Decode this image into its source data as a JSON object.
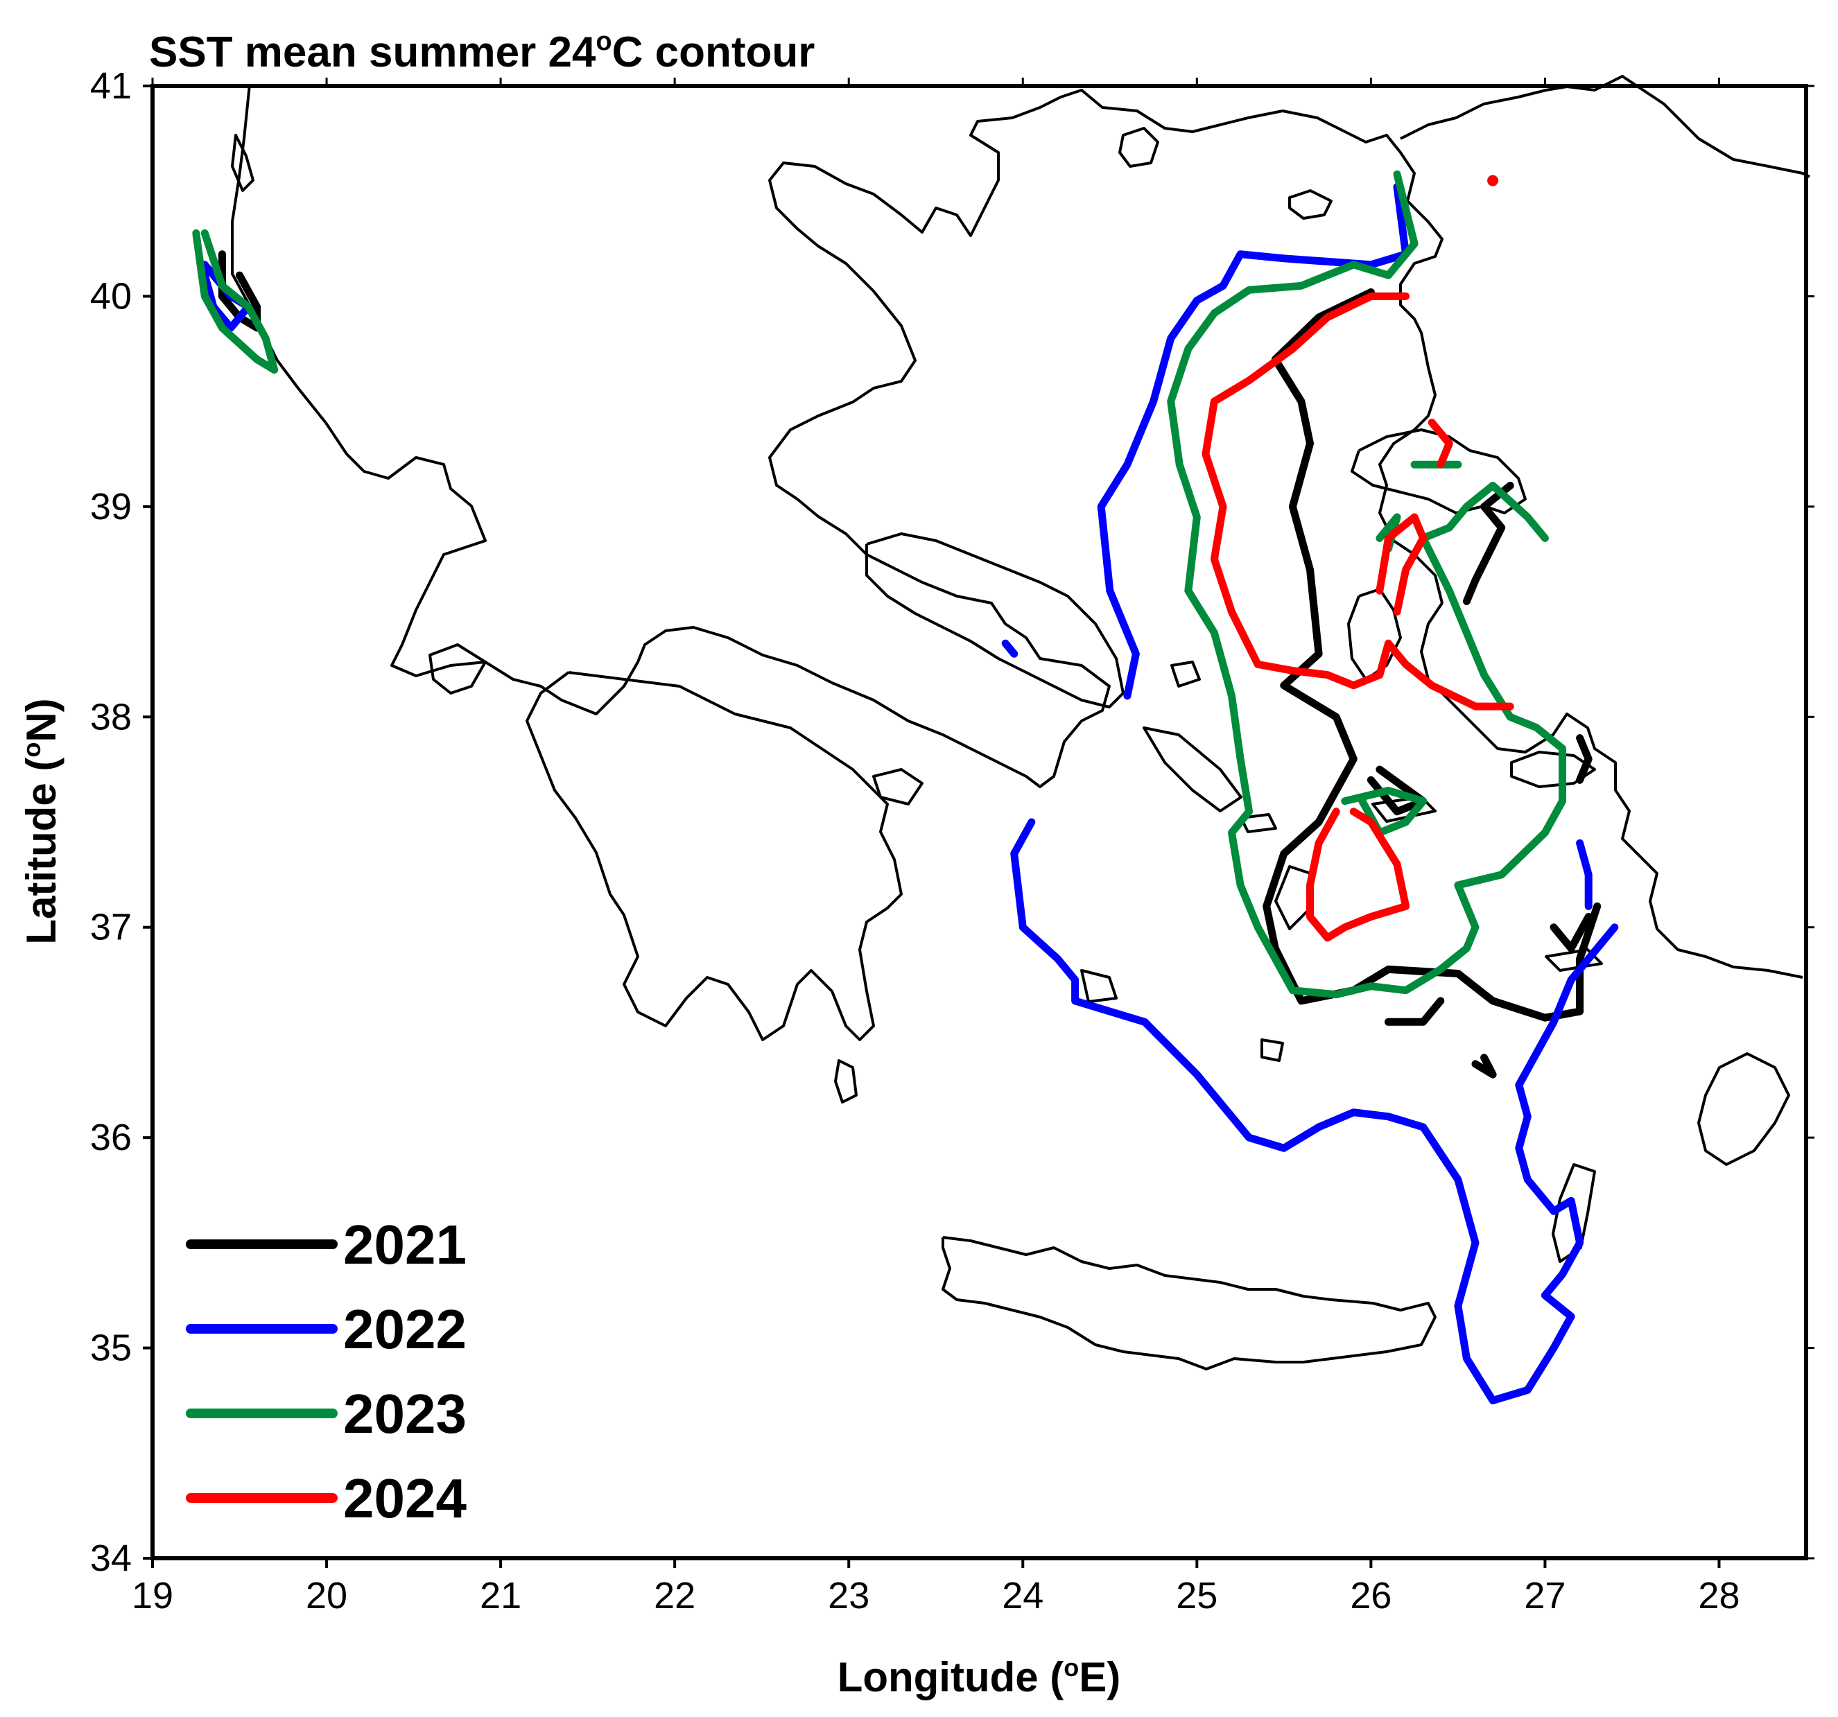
{
  "title": {
    "main": "SST mean summer  24",
    "sup": "o",
    "tail": "C contour"
  },
  "axes": {
    "xlabel": {
      "pre": "Longitude (",
      "sup": "o",
      "post": "E)"
    },
    "ylabel": {
      "pre": "Latitude (",
      "sup": "o",
      "post": "N)"
    },
    "xlim": [
      19,
      28.5
    ],
    "ylim": [
      34,
      41
    ],
    "xticks": [
      "19",
      "20",
      "21",
      "22",
      "23",
      "24",
      "25",
      "26",
      "27",
      "28"
    ],
    "yticks": [
      "34",
      "35",
      "36",
      "37",
      "38",
      "39",
      "40",
      "41"
    ]
  },
  "legend": {
    "placement": "bottom-left",
    "items": [
      {
        "label": "2021",
        "color": "#000000"
      },
      {
        "label": "2022",
        "color": "#0000ff"
      },
      {
        "label": "2023",
        "color": "#008c3c"
      },
      {
        "label": "2024",
        "color": "#ff0000"
      }
    ]
  },
  "chart_data": {
    "type": "map",
    "variable": "SST mean summer 24°C contour",
    "series": [
      {
        "name": "2021",
        "color": "#000000",
        "lines": [
          [
            [
              19.4,
              40.2
            ],
            [
              19.4,
              40.0
            ],
            [
              19.5,
              39.9
            ],
            [
              19.6,
              39.85
            ],
            [
              19.6,
              39.95
            ],
            [
              19.5,
              40.1
            ]
          ],
          [
            [
              26.0,
              40.02
            ],
            [
              25.7,
              39.9
            ],
            [
              25.45,
              39.7
            ],
            [
              25.6,
              39.5
            ],
            [
              25.65,
              39.3
            ],
            [
              25.55,
              39.0
            ],
            [
              25.65,
              38.7
            ],
            [
              25.7,
              38.3
            ],
            [
              25.5,
              38.15
            ],
            [
              25.8,
              38.0
            ],
            [
              25.9,
              37.8
            ],
            [
              25.7,
              37.5
            ],
            [
              25.5,
              37.35
            ],
            [
              25.4,
              37.1
            ],
            [
              25.45,
              36.9
            ],
            [
              25.6,
              36.65
            ],
            [
              25.9,
              36.7
            ],
            [
              26.1,
              36.8
            ],
            [
              26.5,
              36.78
            ],
            [
              26.7,
              36.65
            ],
            [
              27.0,
              36.57
            ],
            [
              27.2,
              36.6
            ],
            [
              27.2,
              36.85
            ],
            [
              27.3,
              37.1
            ]
          ],
          [
            [
              26.55,
              38.55
            ],
            [
              26.6,
              38.65
            ],
            [
              26.75,
              38.9
            ],
            [
              26.65,
              39.0
            ],
            [
              26.8,
              39.1
            ]
          ],
          [
            [
              26.05,
              37.75
            ],
            [
              26.3,
              37.6
            ],
            [
              26.15,
              37.55
            ],
            [
              26.0,
              37.7
            ]
          ],
          [
            [
              26.1,
              36.55
            ],
            [
              26.3,
              36.55
            ],
            [
              26.4,
              36.65
            ]
          ],
          [
            [
              26.6,
              36.35
            ],
            [
              26.7,
              36.3
            ],
            [
              26.65,
              36.38
            ]
          ],
          [
            [
              27.2,
              37.9
            ],
            [
              27.25,
              37.8
            ],
            [
              27.2,
              37.7
            ]
          ],
          [
            [
              27.05,
              37.0
            ],
            [
              27.15,
              36.9
            ],
            [
              27.25,
              37.05
            ]
          ]
        ]
      },
      {
        "name": "2022",
        "color": "#0000ff",
        "lines": [
          [
            [
              19.3,
              40.15
            ],
            [
              19.45,
              40.0
            ],
            [
              19.55,
              39.95
            ],
            [
              19.45,
              39.85
            ],
            [
              19.35,
              39.95
            ],
            [
              19.3,
              40.1
            ]
          ],
          [
            [
              26.15,
              40.52
            ],
            [
              26.2,
              40.2
            ],
            [
              26.0,
              40.15
            ],
            [
              25.5,
              40.18
            ],
            [
              25.25,
              40.2
            ],
            [
              25.15,
              40.05
            ],
            [
              25.0,
              39.98
            ],
            [
              24.85,
              39.8
            ],
            [
              24.75,
              39.5
            ],
            [
              24.6,
              39.2
            ],
            [
              24.45,
              39.0
            ],
            [
              24.5,
              38.6
            ],
            [
              24.65,
              38.3
            ],
            [
              24.6,
              38.1
            ]
          ],
          [
            [
              23.9,
              38.35
            ],
            [
              23.95,
              38.3
            ]
          ],
          [
            [
              24.05,
              37.5
            ],
            [
              23.95,
              37.35
            ],
            [
              24.0,
              37.0
            ],
            [
              24.2,
              36.85
            ],
            [
              24.3,
              36.75
            ],
            [
              24.3,
              36.65
            ],
            [
              24.5,
              36.6
            ],
            [
              24.7,
              36.55
            ],
            [
              25.0,
              36.3
            ],
            [
              25.3,
              36.0
            ],
            [
              25.5,
              35.95
            ],
            [
              25.7,
              36.05
            ],
            [
              25.9,
              36.12
            ],
            [
              26.1,
              36.1
            ],
            [
              26.3,
              36.05
            ],
            [
              26.5,
              35.8
            ],
            [
              26.6,
              35.5
            ],
            [
              26.5,
              35.2
            ],
            [
              26.55,
              34.95
            ],
            [
              26.7,
              34.75
            ],
            [
              26.9,
              34.8
            ],
            [
              27.05,
              35.0
            ],
            [
              27.15,
              35.15
            ],
            [
              27.0,
              35.25
            ],
            [
              27.1,
              35.35
            ],
            [
              27.2,
              35.5
            ],
            [
              27.15,
              35.7
            ],
            [
              27.05,
              35.65
            ],
            [
              26.9,
              35.8
            ],
            [
              26.85,
              35.95
            ],
            [
              26.9,
              36.1
            ],
            [
              26.85,
              36.25
            ],
            [
              26.95,
              36.4
            ],
            [
              27.05,
              36.55
            ],
            [
              27.15,
              36.75
            ],
            [
              27.25,
              36.85
            ],
            [
              27.4,
              37.0
            ]
          ],
          [
            [
              27.2,
              37.4
            ],
            [
              27.25,
              37.25
            ],
            [
              27.25,
              37.1
            ]
          ]
        ]
      },
      {
        "name": "2023",
        "color": "#008c3c",
        "lines": [
          [
            [
              19.25,
              40.3
            ],
            [
              19.3,
              40.0
            ],
            [
              19.4,
              39.85
            ],
            [
              19.6,
              39.7
            ],
            [
              19.7,
              39.65
            ],
            [
              19.65,
              39.8
            ],
            [
              19.55,
              39.95
            ],
            [
              19.4,
              40.05
            ],
            [
              19.3,
              40.3
            ]
          ],
          [
            [
              26.15,
              40.58
            ],
            [
              26.25,
              40.25
            ],
            [
              26.1,
              40.1
            ],
            [
              25.9,
              40.15
            ],
            [
              25.6,
              40.05
            ],
            [
              25.3,
              40.03
            ],
            [
              25.1,
              39.92
            ],
            [
              24.95,
              39.75
            ],
            [
              24.85,
              39.5
            ],
            [
              24.9,
              39.2
            ],
            [
              25.0,
              38.95
            ],
            [
              24.95,
              38.6
            ],
            [
              25.1,
              38.4
            ],
            [
              25.2,
              38.1
            ],
            [
              25.25,
              37.8
            ],
            [
              25.3,
              37.55
            ],
            [
              25.2,
              37.45
            ],
            [
              25.25,
              37.2
            ],
            [
              25.35,
              37.0
            ],
            [
              25.45,
              36.85
            ],
            [
              25.55,
              36.7
            ],
            [
              25.8,
              36.68
            ],
            [
              26.0,
              36.72
            ],
            [
              26.2,
              36.7
            ],
            [
              26.4,
              36.8
            ],
            [
              26.55,
              36.9
            ],
            [
              26.6,
              37.0
            ],
            [
              26.5,
              37.2
            ],
            [
              26.75,
              37.25
            ],
            [
              27.0,
              37.45
            ],
            [
              27.1,
              37.6
            ],
            [
              27.1,
              37.85
            ],
            [
              26.95,
              37.95
            ],
            [
              26.8,
              38.0
            ],
            [
              26.65,
              38.2
            ],
            [
              26.55,
              38.4
            ],
            [
              26.45,
              38.6
            ],
            [
              26.3,
              38.85
            ],
            [
              26.45,
              38.9
            ],
            [
              26.55,
              39.0
            ],
            [
              26.7,
              39.1
            ],
            [
              26.9,
              38.95
            ],
            [
              27.0,
              38.85
            ]
          ],
          [
            [
              25.85,
              37.6
            ],
            [
              26.1,
              37.65
            ],
            [
              26.3,
              37.6
            ],
            [
              26.2,
              37.5
            ],
            [
              26.05,
              37.45
            ],
            [
              25.95,
              37.6
            ]
          ],
          [
            [
              26.25,
              39.2
            ],
            [
              26.4,
              39.2
            ],
            [
              26.5,
              39.2
            ]
          ],
          [
            [
              26.05,
              38.85
            ],
            [
              26.15,
              38.95
            ],
            [
              26.1,
              38.8
            ]
          ]
        ]
      },
      {
        "name": "2024",
        "color": "#ff0000",
        "lines": [
          [
            [
              26.2,
              40.0
            ],
            [
              26.0,
              40.0
            ],
            [
              25.75,
              39.9
            ],
            [
              25.55,
              39.75
            ],
            [
              25.3,
              39.6
            ],
            [
              25.1,
              39.5
            ],
            [
              25.05,
              39.25
            ],
            [
              25.15,
              39.0
            ],
            [
              25.1,
              38.75
            ],
            [
              25.2,
              38.5
            ],
            [
              25.35,
              38.25
            ],
            [
              25.55,
              38.22
            ],
            [
              25.75,
              38.2
            ],
            [
              25.9,
              38.15
            ],
            [
              26.05,
              38.2
            ],
            [
              26.1,
              38.35
            ],
            [
              26.2,
              38.25
            ],
            [
              26.35,
              38.15
            ],
            [
              26.6,
              38.05
            ],
            [
              26.8,
              38.05
            ]
          ],
          [
            [
              25.9,
              37.55
            ],
            [
              26.0,
              37.5
            ],
            [
              26.15,
              37.3
            ],
            [
              26.2,
              37.1
            ],
            [
              26.0,
              37.05
            ],
            [
              25.85,
              37.0
            ],
            [
              25.75,
              36.95
            ],
            [
              25.65,
              37.05
            ],
            [
              25.65,
              37.2
            ],
            [
              25.7,
              37.4
            ],
            [
              25.8,
              37.55
            ]
          ],
          [
            [
              26.05,
              38.6
            ],
            [
              26.1,
              38.85
            ],
            [
              26.25,
              38.95
            ],
            [
              26.3,
              38.85
            ],
            [
              26.2,
              38.7
            ],
            [
              26.15,
              38.5
            ]
          ],
          [
            [
              26.35,
              39.4
            ],
            [
              26.45,
              39.3
            ],
            [
              26.4,
              39.2
            ]
          ],
          [
            [
              26.7,
              40.55
            ]
          ]
        ]
      }
    ]
  }
}
